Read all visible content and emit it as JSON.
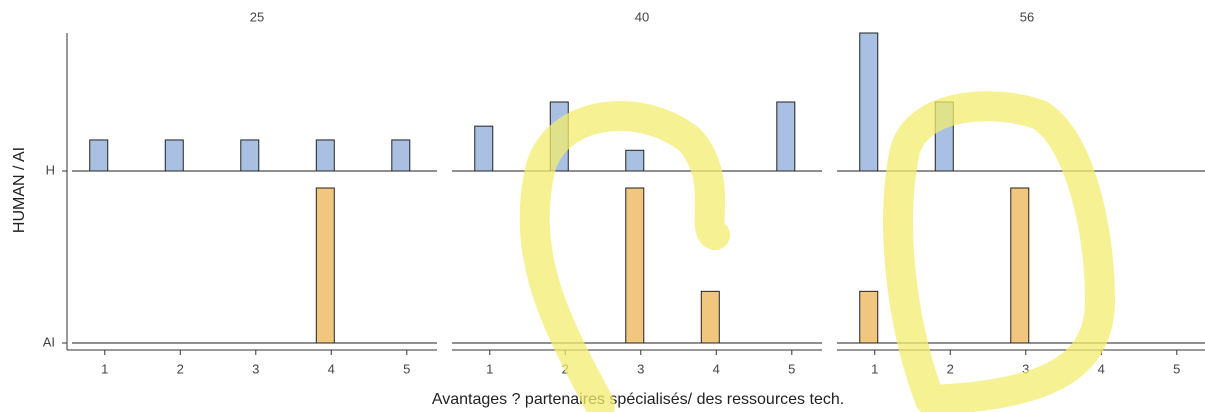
{
  "chart_data": {
    "type": "ridgeline",
    "ylabel": "HUMAN / AI",
    "xlabel": "Avantages ? partenaires spécialisés/ des ressources tech.",
    "xlim": [
      0.5,
      5.4
    ],
    "xticks": [
      1,
      2,
      3,
      4,
      5
    ],
    "rows": [
      {
        "name": "H",
        "color": "#a9c0e3"
      },
      {
        "name": "AI",
        "color": "#f1c77f"
      }
    ],
    "panels": [
      {
        "title": "25",
        "values": [
          [
            0.9,
            0.9,
            0.9,
            0.9,
            0.9
          ],
          [
            0,
            0,
            0,
            3,
            0
          ]
        ]
      },
      {
        "title": "40",
        "values": [
          [
            1.3,
            2,
            0.6,
            0,
            2
          ],
          [
            0,
            0,
            3,
            1,
            0
          ]
        ]
      },
      {
        "title": "56",
        "values": [
          [
            4,
            2,
            0,
            0,
            0
          ],
          [
            1,
            0,
            3,
            0,
            0
          ]
        ]
      }
    ]
  }
}
